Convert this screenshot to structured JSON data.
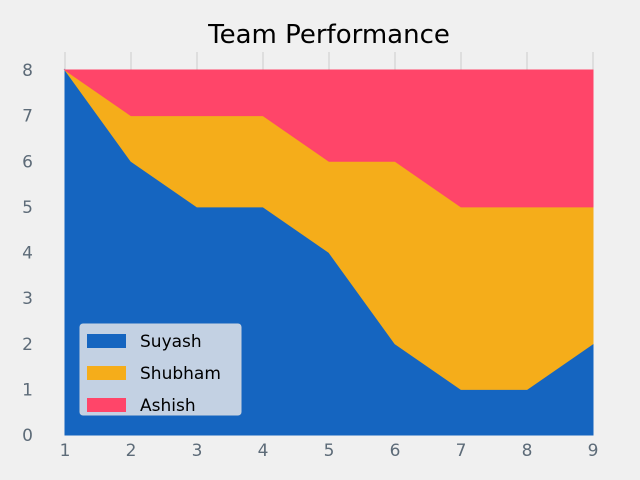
{
  "chart_data": {
    "type": "area",
    "stacked": true,
    "title": "Team Performance",
    "xlabel": "",
    "ylabel": "",
    "x": [
      1,
      2,
      3,
      4,
      5,
      6,
      7,
      8,
      9
    ],
    "xticks": [
      "1",
      "2",
      "3",
      "4",
      "5",
      "6",
      "7",
      "8",
      "9"
    ],
    "yticks": [
      "0",
      "1",
      "2",
      "3",
      "4",
      "5",
      "6",
      "7",
      "8"
    ],
    "xlim": [
      1,
      9
    ],
    "ylim": [
      0,
      8
    ],
    "grid": true,
    "legend_position": "lower-left",
    "series": [
      {
        "name": "Suyash",
        "color": "#1565c0",
        "values": [
          8,
          6,
          5,
          5,
          4,
          2,
          1,
          1,
          2
        ]
      },
      {
        "name": "Shubham",
        "color": "#f5ad1a",
        "values": [
          0,
          1,
          2,
          2,
          2,
          4,
          4,
          4,
          3
        ]
      },
      {
        "name": "Ashish",
        "color": "#ff4569",
        "values": [
          0,
          1,
          1,
          1,
          2,
          2,
          3,
          3,
          3
        ]
      }
    ]
  }
}
